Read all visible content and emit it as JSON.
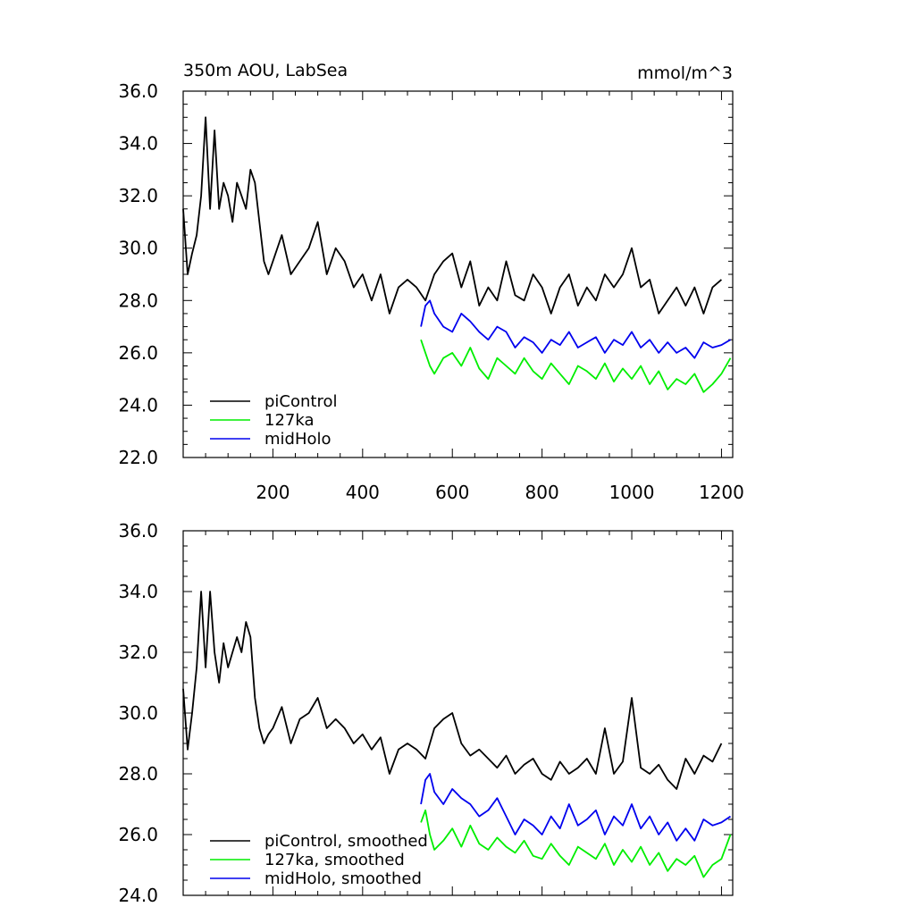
{
  "chart_data": [
    {
      "type": "line",
      "title": "350m AOU, LabSea",
      "units": "mmol/m^3",
      "xlabel": "",
      "ylabel": "",
      "xlim": [
        0,
        1225
      ],
      "ylim": [
        22,
        36
      ],
      "x_ticks": [
        200,
        400,
        600,
        800,
        1000,
        1200
      ],
      "x_tick_labels": [
        "200",
        "400",
        "600",
        "800",
        "1000",
        "1200"
      ],
      "y_ticks": [
        22,
        24,
        26,
        28,
        30,
        32,
        34,
        36
      ],
      "y_tick_labels": [
        "22.0",
        "24.0",
        "26.0",
        "28.0",
        "30.0",
        "32.0",
        "34.0",
        "36.0"
      ],
      "legend_position": "bottom-left",
      "series": [
        {
          "name": "piControl",
          "color": "#000000",
          "x": [
            0,
            10,
            20,
            30,
            40,
            50,
            60,
            70,
            80,
            90,
            100,
            110,
            120,
            130,
            140,
            150,
            160,
            170,
            180,
            190,
            200,
            220,
            240,
            260,
            280,
            300,
            320,
            340,
            360,
            380,
            400,
            420,
            440,
            460,
            480,
            500,
            520,
            540,
            560,
            580,
            600,
            620,
            640,
            660,
            680,
            700,
            720,
            740,
            760,
            780,
            800,
            820,
            840,
            860,
            880,
            900,
            920,
            940,
            960,
            980,
            1000,
            1020,
            1040,
            1060,
            1080,
            1100,
            1120,
            1140,
            1160,
            1180,
            1200
          ],
          "values": [
            31.5,
            29.0,
            29.8,
            30.5,
            32.0,
            35.0,
            31.5,
            34.5,
            31.5,
            32.5,
            32.0,
            31.0,
            32.5,
            32.0,
            31.5,
            33.0,
            32.5,
            31.0,
            29.5,
            29.0,
            29.5,
            30.5,
            29.0,
            29.5,
            30.0,
            31.0,
            29.0,
            30.0,
            29.5,
            28.5,
            29.0,
            28.0,
            29.0,
            27.5,
            28.5,
            28.8,
            28.5,
            28.0,
            29.0,
            29.5,
            29.8,
            28.5,
            29.5,
            27.8,
            28.5,
            28.0,
            29.5,
            28.2,
            28.0,
            29.0,
            28.5,
            27.5,
            28.5,
            29.0,
            27.8,
            28.5,
            28.0,
            29.0,
            28.5,
            29.0,
            30.0,
            28.5,
            28.8,
            27.5,
            28.0,
            28.5,
            27.8,
            28.5,
            27.5,
            28.5,
            28.8
          ]
        },
        {
          "name": "127ka",
          "color": "#00ee00",
          "x": [
            530,
            540,
            550,
            560,
            580,
            600,
            620,
            640,
            660,
            680,
            700,
            720,
            740,
            760,
            780,
            800,
            820,
            840,
            860,
            880,
            900,
            920,
            940,
            960,
            980,
            1000,
            1020,
            1040,
            1060,
            1080,
            1100,
            1120,
            1140,
            1160,
            1180,
            1200,
            1220
          ],
          "values": [
            26.5,
            26.0,
            25.5,
            25.2,
            25.8,
            26.0,
            25.5,
            26.2,
            25.4,
            25.0,
            25.8,
            25.5,
            25.2,
            25.8,
            25.3,
            25.0,
            25.6,
            25.2,
            24.8,
            25.5,
            25.3,
            25.0,
            25.6,
            24.9,
            25.4,
            25.0,
            25.5,
            24.8,
            25.3,
            24.6,
            25.0,
            24.8,
            25.2,
            24.5,
            24.8,
            25.2,
            25.8
          ]
        },
        {
          "name": "midHolo",
          "color": "#0000ee",
          "x": [
            530,
            540,
            550,
            560,
            580,
            600,
            620,
            640,
            660,
            680,
            700,
            720,
            740,
            760,
            780,
            800,
            820,
            840,
            860,
            880,
            900,
            920,
            940,
            960,
            980,
            1000,
            1020,
            1040,
            1060,
            1080,
            1100,
            1120,
            1140,
            1160,
            1180,
            1200,
            1220
          ],
          "values": [
            27.0,
            27.8,
            28.0,
            27.5,
            27.0,
            26.8,
            27.5,
            27.2,
            26.8,
            26.5,
            27.0,
            26.8,
            26.2,
            26.6,
            26.4,
            26.0,
            26.5,
            26.3,
            26.8,
            26.2,
            26.4,
            26.6,
            26.0,
            26.5,
            26.3,
            26.8,
            26.2,
            26.5,
            26.0,
            26.4,
            26.0,
            26.2,
            25.8,
            26.4,
            26.2,
            26.3,
            26.5
          ]
        }
      ],
      "legend": [
        "piControl",
        "127ka",
        "midHolo"
      ]
    },
    {
      "type": "line",
      "title": "",
      "xlabel": "",
      "ylabel": "",
      "xlim": [
        0,
        1225
      ],
      "ylim": [
        24,
        36
      ],
      "x_ticks": [
        200,
        400,
        600,
        800,
        1000,
        1200
      ],
      "x_tick_labels": [],
      "y_ticks": [
        24,
        26,
        28,
        30,
        32,
        34,
        36
      ],
      "y_tick_labels": [
        "24.0",
        "26.0",
        "28.0",
        "30.0",
        "32.0",
        "34.0",
        "36.0"
      ],
      "legend_position": "bottom-left",
      "series": [
        {
          "name": "piControl, smoothed",
          "color": "#000000",
          "x": [
            0,
            10,
            20,
            30,
            40,
            50,
            60,
            70,
            80,
            90,
            100,
            110,
            120,
            130,
            140,
            150,
            160,
            170,
            180,
            190,
            200,
            220,
            240,
            260,
            280,
            300,
            320,
            340,
            360,
            380,
            400,
            420,
            440,
            460,
            480,
            500,
            520,
            540,
            560,
            580,
            600,
            620,
            640,
            660,
            680,
            700,
            720,
            740,
            760,
            780,
            800,
            820,
            840,
            860,
            880,
            900,
            920,
            940,
            960,
            980,
            1000,
            1020,
            1040,
            1060,
            1080,
            1100,
            1120,
            1140,
            1160,
            1180,
            1200
          ],
          "values": [
            30.8,
            28.8,
            30.0,
            31.5,
            34.0,
            31.5,
            34.0,
            32.0,
            31.0,
            32.3,
            31.5,
            32.0,
            32.5,
            32.0,
            33.0,
            32.5,
            30.5,
            29.5,
            29.0,
            29.3,
            29.5,
            30.2,
            29.0,
            29.8,
            30.0,
            30.5,
            29.5,
            29.8,
            29.5,
            29.0,
            29.3,
            28.8,
            29.2,
            28.0,
            28.8,
            29.0,
            28.8,
            28.5,
            29.5,
            29.8,
            30.0,
            29.0,
            28.6,
            28.8,
            28.5,
            28.2,
            28.6,
            28.0,
            28.3,
            28.5,
            28.0,
            27.8,
            28.4,
            28.0,
            28.2,
            28.5,
            28.0,
            29.5,
            28.0,
            28.4,
            30.5,
            28.2,
            28.0,
            28.3,
            27.8,
            27.5,
            28.5,
            28.0,
            28.6,
            28.4,
            29.0
          ]
        },
        {
          "name": "127ka, smoothed",
          "color": "#00ee00",
          "x": [
            530,
            540,
            550,
            560,
            580,
            600,
            620,
            640,
            660,
            680,
            700,
            720,
            740,
            760,
            780,
            800,
            820,
            840,
            860,
            880,
            900,
            920,
            940,
            960,
            980,
            1000,
            1020,
            1040,
            1060,
            1080,
            1100,
            1120,
            1140,
            1160,
            1180,
            1200,
            1220
          ],
          "values": [
            26.4,
            26.8,
            26.0,
            25.5,
            25.8,
            26.2,
            25.6,
            26.3,
            25.7,
            25.5,
            25.9,
            25.6,
            25.4,
            25.8,
            25.3,
            25.2,
            25.7,
            25.3,
            25.0,
            25.6,
            25.4,
            25.2,
            25.7,
            25.0,
            25.5,
            25.1,
            25.6,
            25.0,
            25.4,
            24.8,
            25.2,
            25.0,
            25.3,
            24.6,
            25.0,
            25.2,
            26.0
          ]
        },
        {
          "name": "midHolo, smoothed",
          "color": "#0000ee",
          "x": [
            530,
            540,
            550,
            560,
            580,
            600,
            620,
            640,
            660,
            680,
            700,
            720,
            740,
            760,
            780,
            800,
            820,
            840,
            860,
            880,
            900,
            920,
            940,
            960,
            980,
            1000,
            1020,
            1040,
            1060,
            1080,
            1100,
            1120,
            1140,
            1160,
            1180,
            1200,
            1220
          ],
          "values": [
            27.0,
            27.8,
            28.0,
            27.4,
            27.0,
            27.5,
            27.2,
            27.0,
            26.6,
            26.8,
            27.2,
            26.6,
            26.0,
            26.5,
            26.3,
            26.0,
            26.6,
            26.2,
            27.0,
            26.3,
            26.5,
            26.8,
            26.0,
            26.6,
            26.3,
            27.0,
            26.2,
            26.6,
            26.0,
            26.4,
            25.8,
            26.2,
            25.8,
            26.5,
            26.3,
            26.4,
            26.6
          ]
        }
      ],
      "legend": [
        "piControl, smoothed",
        "127ka, smoothed",
        "midHolo, smoothed"
      ]
    }
  ]
}
